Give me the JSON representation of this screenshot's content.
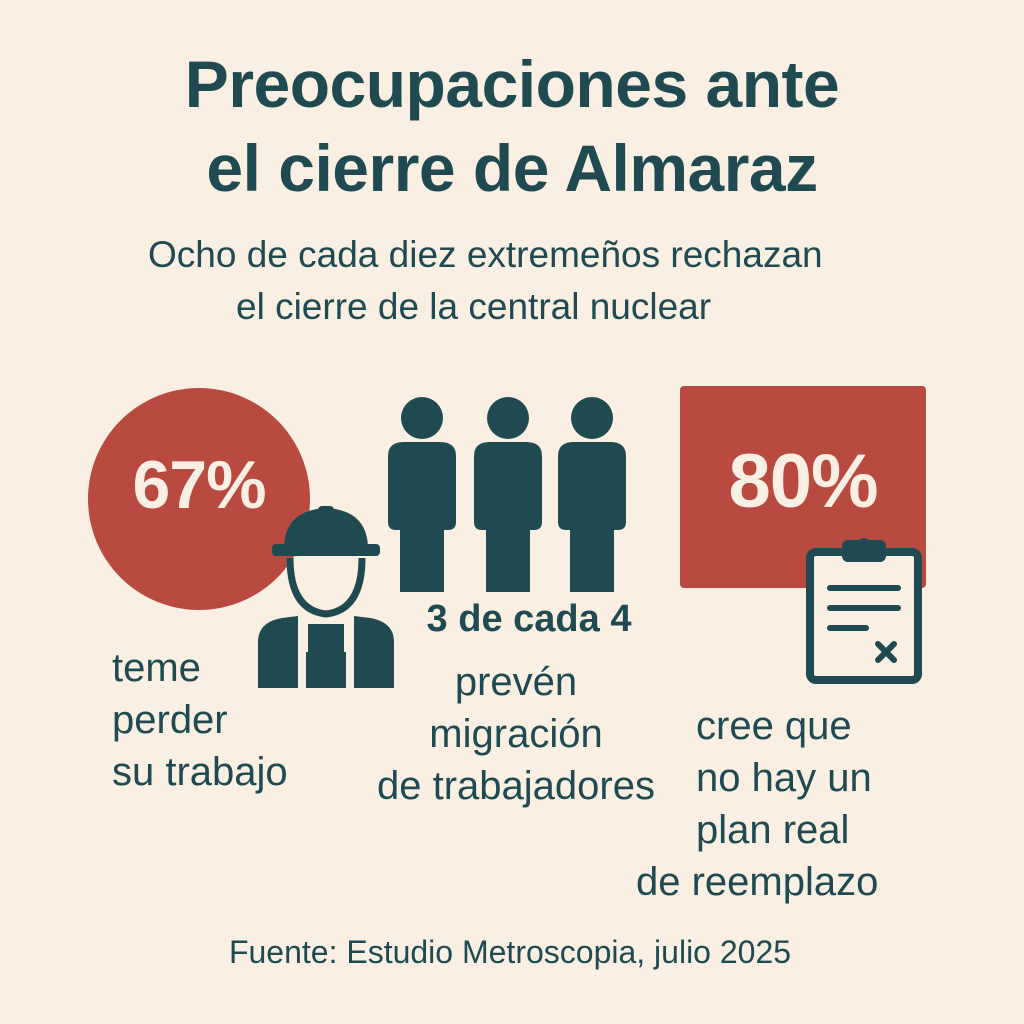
{
  "title": {
    "line1": "Preocupaciones ante",
    "line2": "el cierre de Almaraz"
  },
  "subtitle": {
    "line1": "Ocho de cada diez extremeños rechazan",
    "line2": "el cierre de la central nuclear"
  },
  "stats": {
    "job_loss": {
      "percent": "67%",
      "lines": [
        "teme",
        "perder",
        "su trabajo"
      ],
      "icon": "worker-hardhat-icon"
    },
    "migration": {
      "headline": "3 de cada 4",
      "lines": [
        "prevén",
        "migración",
        "de trabajadores"
      ],
      "icon": "three-people-icon"
    },
    "no_plan": {
      "percent": "80%",
      "lines": [
        "cree que",
        "no hay un",
        "plan real",
        "de reemplazo"
      ],
      "icon": "clipboard-x-icon"
    }
  },
  "source": "Fuente: Estudio Metroscopia, julio 2025",
  "colors": {
    "background": "#f9efe2",
    "accent_red": "#b94a40",
    "text_teal": "#1f4a52"
  }
}
